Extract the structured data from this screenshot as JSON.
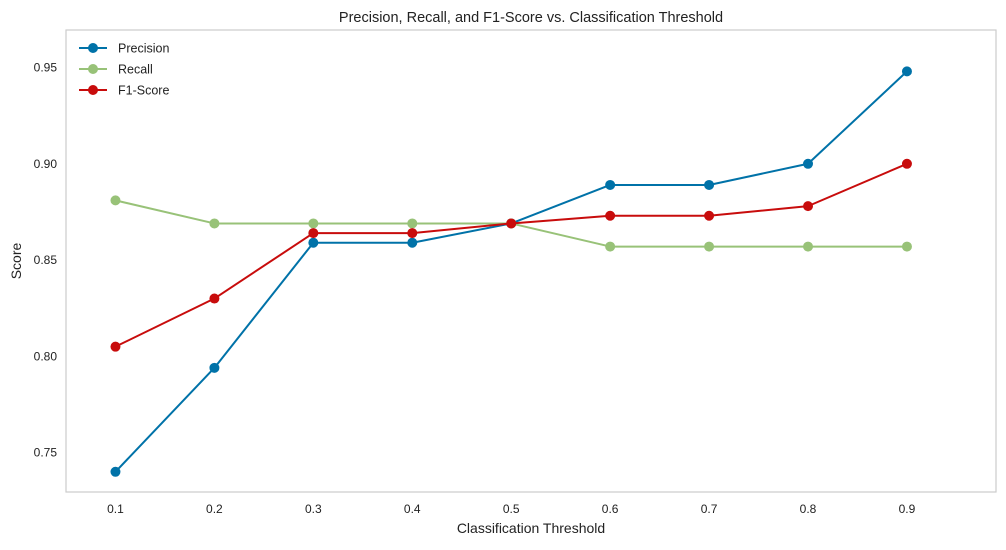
{
  "chart_data": {
    "type": "line",
    "title": "Precision, Recall, and F1-Score vs. Classification Threshold",
    "xlabel": "Classification Threshold",
    "ylabel": "Score",
    "x": [
      0.1,
      0.2,
      0.3,
      0.4,
      0.5,
      0.6,
      0.7,
      0.8,
      0.9
    ],
    "x_tick_labels": [
      "0.1",
      "0.2",
      "0.3",
      "0.4",
      "0.5",
      "0.6",
      "0.7",
      "0.8",
      "0.9"
    ],
    "y_ticks": [
      0.75,
      0.8,
      0.85,
      0.9,
      0.95
    ],
    "y_tick_labels": [
      "0.75",
      "0.80",
      "0.85",
      "0.90",
      "0.95"
    ],
    "xlim": [
      0.05,
      0.99
    ],
    "ylim": [
      0.7295,
      0.9695
    ],
    "grid": false,
    "legend_position": "top-left",
    "series": [
      {
        "name": "Precision",
        "color": "#0072a8",
        "marker": "circle",
        "values": [
          0.74,
          0.794,
          0.859,
          0.859,
          0.869,
          0.889,
          0.889,
          0.9,
          0.948
        ]
      },
      {
        "name": "Recall",
        "color": "#98c278",
        "marker": "circle",
        "values": [
          0.881,
          0.869,
          0.869,
          0.869,
          0.869,
          0.857,
          0.857,
          0.857,
          0.857
        ]
      },
      {
        "name": "F1-Score",
        "color": "#c80c0c",
        "marker": "circle",
        "values": [
          0.805,
          0.83,
          0.864,
          0.864,
          0.869,
          0.873,
          0.873,
          0.878,
          0.9
        ]
      }
    ]
  }
}
